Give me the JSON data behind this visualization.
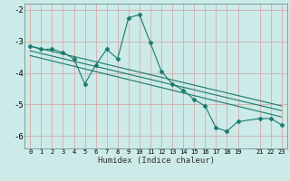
{
  "title": "",
  "xlabel": "Humidex (Indice chaleur)",
  "bg_color": "#cceae7",
  "grid_color": "#aad4d0",
  "line_color": "#1a7a6e",
  "marker": "D",
  "markersize": 2.5,
  "linewidth": 0.8,
  "xlim": [
    -0.5,
    23.5
  ],
  "ylim": [
    -6.4,
    -1.8
  ],
  "xticks": [
    0,
    1,
    2,
    3,
    4,
    5,
    6,
    7,
    8,
    9,
    10,
    11,
    12,
    13,
    14,
    15,
    16,
    17,
    18,
    19,
    21,
    22,
    23
  ],
  "yticks": [
    -6,
    -5,
    -4,
    -3,
    -2
  ],
  "series": [
    {
      "x": [
        0,
        1,
        2,
        3,
        4,
        5,
        6,
        7,
        8,
        9,
        10,
        11,
        12,
        13,
        14,
        15,
        16,
        17,
        18,
        19,
        21,
        22,
        23
      ],
      "y": [
        -3.15,
        -3.25,
        -3.25,
        -3.35,
        -3.55,
        -4.35,
        -3.75,
        -3.25,
        -3.55,
        -2.25,
        -2.15,
        -3.05,
        -3.95,
        -4.35,
        -4.55,
        -4.85,
        -5.05,
        -5.75,
        -5.85,
        -5.55,
        -5.45,
        -5.45,
        -5.65
      ],
      "has_markers": true
    },
    {
      "x": [
        0,
        23
      ],
      "y": [
        -3.15,
        -5.05
      ],
      "has_markers": false
    },
    {
      "x": [
        0,
        23
      ],
      "y": [
        -3.3,
        -5.2
      ],
      "has_markers": false
    },
    {
      "x": [
        0,
        23
      ],
      "y": [
        -3.45,
        -5.4
      ],
      "has_markers": false
    }
  ]
}
